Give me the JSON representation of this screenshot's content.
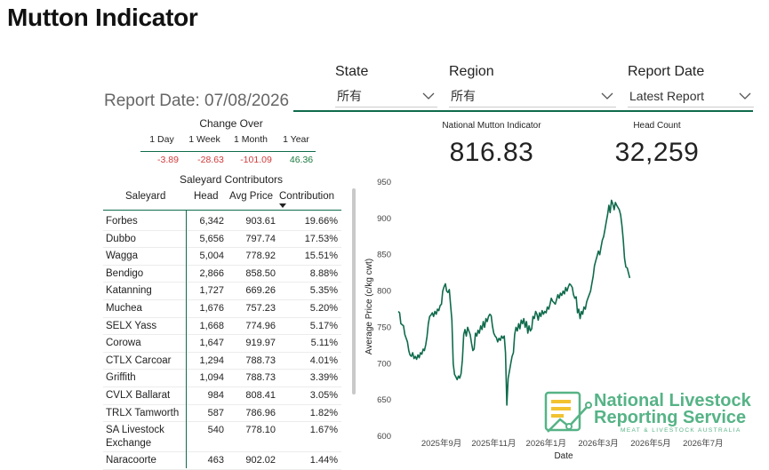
{
  "page_title": "Mutton Indicator",
  "filters": [
    {
      "label": "State",
      "value": "所有"
    },
    {
      "label": "Region",
      "value": "所有"
    },
    {
      "label": "Report Date",
      "value": "Latest Report"
    }
  ],
  "report_date_text": "Report Date: 07/08/2026",
  "kpis": [
    {
      "label": "National Mutton Indicator",
      "value": "816.83"
    },
    {
      "label": "Head Count",
      "value": "32,259"
    }
  ],
  "change_over": {
    "title": "Change Over",
    "periods": [
      {
        "label": "1 Day",
        "value": "-3.89",
        "trend": "down"
      },
      {
        "label": "1 Week",
        "value": "-28.63",
        "trend": "down"
      },
      {
        "label": "1 Month",
        "value": "-101.09",
        "trend": "down"
      },
      {
        "label": "1 Year",
        "value": "46.36",
        "trend": "up"
      }
    ]
  },
  "saleyard_table": {
    "title": "Saleyard Contributors",
    "columns": [
      "Saleyard",
      "Head",
      "Avg Price",
      "Contribution"
    ],
    "sort_column": "Contribution",
    "rows": [
      {
        "saleyard": "Forbes",
        "head": "6,342",
        "avg_price": "903.61",
        "contribution": "19.66%"
      },
      {
        "saleyard": "Dubbo",
        "head": "5,656",
        "avg_price": "797.74",
        "contribution": "17.53%"
      },
      {
        "saleyard": "Wagga",
        "head": "5,004",
        "avg_price": "778.92",
        "contribution": "15.51%"
      },
      {
        "saleyard": "Bendigo",
        "head": "2,866",
        "avg_price": "858.50",
        "contribution": "8.88%"
      },
      {
        "saleyard": "Katanning",
        "head": "1,727",
        "avg_price": "669.26",
        "contribution": "5.35%"
      },
      {
        "saleyard": "Muchea",
        "head": "1,676",
        "avg_price": "757.23",
        "contribution": "5.20%"
      },
      {
        "saleyard": "SELX Yass",
        "head": "1,668",
        "avg_price": "774.96",
        "contribution": "5.17%"
      },
      {
        "saleyard": "Corowa",
        "head": "1,647",
        "avg_price": "919.97",
        "contribution": "5.11%"
      },
      {
        "saleyard": "CTLX Carcoar",
        "head": "1,294",
        "avg_price": "788.73",
        "contribution": "4.01%"
      },
      {
        "saleyard": "Griffith",
        "head": "1,094",
        "avg_price": "788.73",
        "contribution": "3.39%"
      },
      {
        "saleyard": "CVLX Ballarat",
        "head": "984",
        "avg_price": "808.41",
        "contribution": "3.05%"
      },
      {
        "saleyard": "TRLX Tamworth",
        "head": "587",
        "avg_price": "786.96",
        "contribution": "1.82%"
      },
      {
        "saleyard": "SA Livestock Exchange",
        "head": "540",
        "avg_price": "778.10",
        "contribution": "1.67%"
      },
      {
        "saleyard": "Naracoorte",
        "head": "463",
        "avg_price": "902.02",
        "contribution": "1.44%"
      }
    ]
  },
  "chart_data": {
    "type": "line",
    "title": "",
    "xlabel": "Date",
    "ylabel": "Average Price (c/kg cwt)",
    "ylim": [
      600,
      950
    ],
    "yticks": [
      600,
      650,
      700,
      750,
      800,
      850,
      900,
      950
    ],
    "x_tick_labels": [
      "2025年9月",
      "2025年11月",
      "2026年1月",
      "2026年3月",
      "2026年5月",
      "2026年7月"
    ],
    "x_tick_months": [
      2,
      4,
      6,
      8,
      10,
      12
    ],
    "x_range_months": [
      0.35,
      13.4
    ],
    "grid": false,
    "line_color": "#0f6b4b",
    "series": [
      {
        "name": "",
        "points": [
          [
            0.35,
            772
          ],
          [
            0.4,
            770
          ],
          [
            0.45,
            755
          ],
          [
            0.55,
            752
          ],
          [
            0.6,
            740
          ],
          [
            0.7,
            730
          ],
          [
            0.75,
            718
          ],
          [
            0.8,
            712
          ],
          [
            0.85,
            710
          ],
          [
            0.9,
            715
          ],
          [
            0.95,
            707
          ],
          [
            1.0,
            710
          ],
          [
            1.05,
            706
          ],
          [
            1.1,
            712
          ],
          [
            1.15,
            708
          ],
          [
            1.2,
            715
          ],
          [
            1.25,
            713
          ],
          [
            1.3,
            720
          ],
          [
            1.35,
            718
          ],
          [
            1.4,
            726
          ],
          [
            1.45,
            738
          ],
          [
            1.5,
            755
          ],
          [
            1.55,
            765
          ],
          [
            1.6,
            767
          ],
          [
            1.65,
            770
          ],
          [
            1.7,
            765
          ],
          [
            1.75,
            772
          ],
          [
            1.8,
            768
          ],
          [
            1.85,
            775
          ],
          [
            1.9,
            773
          ],
          [
            1.95,
            780
          ],
          [
            2.0,
            782
          ],
          [
            2.05,
            800
          ],
          [
            2.1,
            806
          ],
          [
            2.15,
            810
          ],
          [
            2.2,
            800
          ],
          [
            2.25,
            798
          ],
          [
            2.3,
            802
          ],
          [
            2.35,
            780
          ],
          [
            2.4,
            760
          ],
          [
            2.45,
            700
          ],
          [
            2.5,
            685
          ],
          [
            2.55,
            682
          ],
          [
            2.6,
            678
          ],
          [
            2.65,
            683
          ],
          [
            2.7,
            680
          ],
          [
            2.75,
            686
          ],
          [
            2.8,
            705
          ],
          [
            2.85,
            740
          ],
          [
            2.9,
            747
          ],
          [
            2.95,
            738
          ],
          [
            3.0,
            750
          ],
          [
            3.05,
            745
          ],
          [
            3.1,
            740
          ],
          [
            3.15,
            728
          ],
          [
            3.2,
            718
          ],
          [
            3.25,
            720
          ],
          [
            3.3,
            742
          ],
          [
            3.35,
            738
          ],
          [
            3.4,
            746
          ],
          [
            3.45,
            742
          ],
          [
            3.5,
            752
          ],
          [
            3.55,
            747
          ],
          [
            3.6,
            758
          ],
          [
            3.65,
            750
          ],
          [
            3.7,
            762
          ],
          [
            3.75,
            758
          ],
          [
            3.8,
            765
          ],
          [
            3.85,
            768
          ],
          [
            3.9,
            766
          ],
          [
            3.95,
            752
          ],
          [
            4.0,
            742
          ],
          [
            4.05,
            738
          ],
          [
            4.1,
            736
          ],
          [
            4.15,
            730
          ],
          [
            4.2,
            735
          ],
          [
            4.25,
            732
          ],
          [
            4.3,
            738
          ],
          [
            4.35,
            735
          ],
          [
            4.4,
            738
          ],
          [
            4.45,
            715
          ],
          [
            4.5,
            643
          ],
          [
            4.55,
            680
          ],
          [
            4.6,
            690
          ],
          [
            4.65,
            700
          ],
          [
            4.7,
            710
          ],
          [
            4.75,
            715
          ],
          [
            4.8,
            740
          ],
          [
            4.85,
            750
          ],
          [
            4.9,
            745
          ],
          [
            4.95,
            755
          ],
          [
            5.0,
            748
          ],
          [
            5.05,
            760
          ],
          [
            5.1,
            755
          ],
          [
            5.15,
            762
          ],
          [
            5.2,
            750
          ],
          [
            5.25,
            758
          ],
          [
            5.3,
            742
          ],
          [
            5.35,
            752
          ],
          [
            5.4,
            745
          ],
          [
            5.45,
            748
          ],
          [
            5.5,
            765
          ],
          [
            5.55,
            762
          ],
          [
            5.6,
            772
          ],
          [
            5.65,
            768
          ],
          [
            5.7,
            760
          ],
          [
            5.75,
            770
          ],
          [
            5.8,
            765
          ],
          [
            5.85,
            773
          ],
          [
            5.9,
            768
          ],
          [
            5.95,
            772
          ],
          [
            6.0,
            770
          ],
          [
            6.05,
            778
          ],
          [
            6.1,
            775
          ],
          [
            6.15,
            782
          ],
          [
            6.2,
            790
          ],
          [
            6.25,
            786
          ],
          [
            6.3,
            784
          ],
          [
            6.35,
            782
          ],
          [
            6.4,
            788
          ],
          [
            6.45,
            795
          ],
          [
            6.5,
            790
          ],
          [
            6.55,
            797
          ],
          [
            6.6,
            794
          ],
          [
            6.65,
            800
          ],
          [
            6.7,
            796
          ],
          [
            6.75,
            805
          ],
          [
            6.8,
            800
          ],
          [
            6.85,
            806
          ],
          [
            6.9,
            810
          ],
          [
            6.95,
            808
          ],
          [
            7.0,
            805
          ],
          [
            7.05,
            795
          ],
          [
            7.1,
            790
          ],
          [
            7.15,
            792
          ],
          [
            7.2,
            770
          ],
          [
            7.25,
            775
          ],
          [
            7.3,
            762
          ],
          [
            7.35,
            772
          ],
          [
            7.4,
            768
          ],
          [
            7.45,
            778
          ],
          [
            7.5,
            775
          ],
          [
            7.55,
            785
          ],
          [
            7.6,
            790
          ],
          [
            7.65,
            795
          ],
          [
            7.7,
            800
          ],
          [
            7.75,
            810
          ],
          [
            7.8,
            820
          ],
          [
            7.85,
            835
          ],
          [
            7.9,
            842
          ],
          [
            7.95,
            848
          ],
          [
            8.0,
            855
          ],
          [
            8.05,
            850
          ],
          [
            8.1,
            860
          ],
          [
            8.15,
            870
          ],
          [
            8.2,
            875
          ],
          [
            8.25,
            885
          ],
          [
            8.3,
            895
          ],
          [
            8.35,
            905
          ],
          [
            8.4,
            918
          ],
          [
            8.45,
            908
          ],
          [
            8.5,
            925
          ],
          [
            8.55,
            920
          ],
          [
            8.6,
            912
          ],
          [
            8.65,
            922
          ],
          [
            8.7,
            918
          ],
          [
            8.75,
            915
          ],
          [
            8.8,
            912
          ],
          [
            8.85,
            905
          ],
          [
            8.9,
            890
          ],
          [
            8.95,
            870
          ],
          [
            9.0,
            845
          ],
          [
            9.05,
            833
          ],
          [
            9.1,
            832
          ],
          [
            9.15,
            825
          ],
          [
            9.2,
            818
          ]
        ]
      }
    ]
  },
  "logo": {
    "line1": "National Livestock",
    "line2": "Reporting Service",
    "line3": "MEAT & LIVESTOCK AUSTRALIA"
  }
}
